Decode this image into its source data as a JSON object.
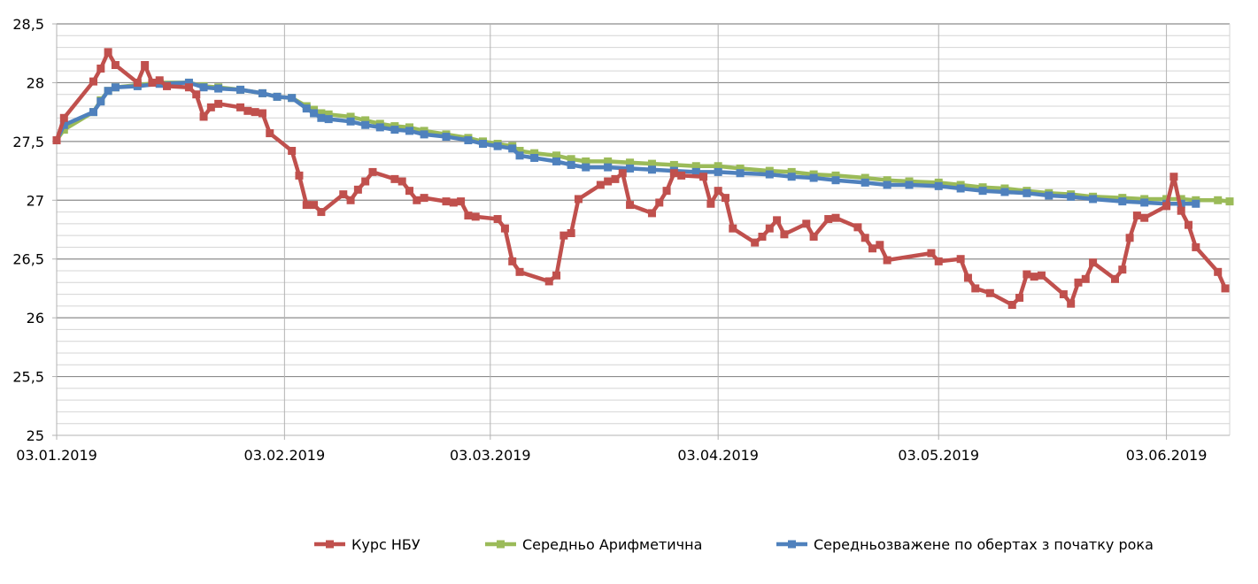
{
  "chart_data": {
    "type": "line",
    "title": "",
    "xlabel": "",
    "ylabel": "",
    "x_unit": "days since 03.01.2019",
    "xlim": [
      0,
      159.6
    ],
    "ylim": [
      25,
      28.5
    ],
    "y_major_step": 0.5,
    "y_minor_step": 0.1,
    "grid": true,
    "legend_position": "bottom",
    "y_ticks": [
      "25",
      "25,5",
      "26",
      "26,5",
      "27",
      "27,5",
      "28",
      "28,5"
    ],
    "x_ticks": [
      {
        "day": 0,
        "label": "03.01.2019"
      },
      {
        "day": 31,
        "label": "03.02.2019"
      },
      {
        "day": 59,
        "label": "03.03.2019"
      },
      {
        "day": 90,
        "label": "03.04.2019"
      },
      {
        "day": 120,
        "label": "03.05.2019"
      },
      {
        "day": 151,
        "label": "03.06.2019"
      }
    ],
    "series": [
      {
        "name": "Курс НБУ",
        "color": "#c0504d",
        "x": [
          0,
          1,
          5,
          6,
          7,
          8,
          11,
          12,
          13,
          14,
          15,
          18,
          19,
          20,
          21,
          22,
          25,
          26,
          27,
          28,
          29,
          32,
          33,
          34,
          35,
          36,
          39,
          40,
          41,
          42,
          43,
          46,
          47,
          48,
          49,
          50,
          53,
          54,
          55,
          56,
          57,
          60,
          61,
          62,
          63,
          67,
          68,
          69,
          70,
          71,
          74,
          75,
          76,
          77,
          78,
          81,
          82,
          83,
          84,
          85,
          88,
          89,
          90,
          91,
          92,
          95,
          96,
          97,
          98,
          99,
          102,
          103,
          105,
          106,
          109,
          110,
          111,
          112,
          113,
          119,
          120,
          123,
          124,
          125,
          127,
          130,
          131,
          132,
          133,
          134,
          137,
          138,
          139,
          140,
          141,
          144,
          145,
          146,
          147,
          148,
          151,
          152,
          153,
          154,
          155,
          158,
          159
        ],
        "y": [
          27.51,
          27.7,
          28.01,
          28.12,
          28.26,
          28.15,
          28.0,
          28.15,
          28.0,
          28.02,
          27.97,
          27.96,
          27.9,
          27.71,
          27.79,
          27.82,
          27.79,
          27.76,
          27.75,
          27.74,
          27.57,
          27.42,
          27.21,
          26.96,
          26.96,
          26.9,
          27.05,
          27.0,
          27.09,
          27.16,
          27.24,
          27.18,
          27.16,
          27.08,
          27.0,
          27.02,
          26.99,
          26.98,
          26.99,
          26.87,
          26.86,
          26.84,
          26.76,
          26.48,
          26.39,
          26.31,
          26.36,
          26.7,
          26.72,
          27.01,
          27.13,
          27.16,
          27.18,
          27.23,
          26.96,
          26.89,
          26.98,
          27.08,
          27.23,
          27.21,
          27.2,
          26.97,
          27.08,
          27.02,
          26.76,
          26.64,
          26.69,
          26.76,
          26.83,
          26.71,
          26.8,
          26.69,
          26.84,
          26.85,
          26.77,
          26.68,
          26.59,
          26.62,
          26.49,
          26.55,
          26.48,
          26.5,
          26.34,
          26.25,
          26.21,
          26.11,
          26.17,
          26.37,
          26.35,
          26.36,
          26.2,
          26.12,
          26.3,
          26.33,
          26.47,
          26.33,
          26.41,
          26.68,
          26.87,
          26.85,
          26.95,
          27.2,
          26.91,
          26.79,
          26.6,
          26.39,
          26.25
        ]
      },
      {
        "name": "Середньо Арифметична",
        "color": "#9bbb59",
        "x": [
          0,
          1,
          5,
          6,
          7,
          8,
          11,
          14,
          18,
          20,
          22,
          25,
          28,
          30,
          32,
          34,
          35,
          36,
          37,
          40,
          42,
          44,
          46,
          48,
          50,
          53,
          56,
          58,
          60,
          62,
          63,
          65,
          68,
          70,
          72,
          75,
          78,
          81,
          84,
          87,
          90,
          93,
          97,
          100,
          103,
          106,
          110,
          113,
          116,
          120,
          123,
          126,
          129,
          132,
          135,
          138,
          141,
          145,
          148,
          151,
          153,
          155,
          158,
          159.6
        ],
        "y": [
          27.51,
          27.6,
          27.75,
          27.85,
          27.93,
          27.96,
          27.98,
          28.0,
          28.0,
          27.97,
          27.96,
          27.94,
          27.91,
          27.88,
          27.87,
          27.8,
          27.77,
          27.74,
          27.73,
          27.71,
          27.68,
          27.65,
          27.63,
          27.62,
          27.59,
          27.56,
          27.53,
          27.5,
          27.48,
          27.46,
          27.42,
          27.4,
          27.38,
          27.35,
          27.33,
          27.33,
          27.32,
          27.31,
          27.3,
          27.29,
          27.29,
          27.27,
          27.25,
          27.24,
          27.22,
          27.21,
          27.19,
          27.17,
          27.16,
          27.15,
          27.13,
          27.11,
          27.1,
          27.08,
          27.06,
          27.05,
          27.03,
          27.02,
          27.01,
          27.01,
          27.01,
          27.0,
          27.0,
          26.99
        ]
      },
      {
        "name": "Середньозважене по обертах з початку рока",
        "color": "#4f81bd",
        "x": [
          0,
          1,
          5,
          6,
          7,
          8,
          11,
          14,
          18,
          20,
          22,
          25,
          28,
          30,
          32,
          34,
          35,
          36,
          37,
          40,
          42,
          44,
          46,
          48,
          50,
          53,
          56,
          58,
          60,
          62,
          63,
          65,
          68,
          70,
          72,
          75,
          78,
          81,
          84,
          87,
          90,
          93,
          97,
          100,
          103,
          106,
          110,
          113,
          116,
          120,
          123,
          126,
          129,
          132,
          135,
          138,
          141,
          145,
          148,
          151,
          153,
          155
        ],
        "y": [
          27.51,
          27.64,
          27.75,
          27.84,
          27.93,
          27.96,
          27.97,
          27.99,
          28.0,
          27.96,
          27.95,
          27.94,
          27.91,
          27.88,
          27.87,
          27.78,
          27.74,
          27.7,
          27.69,
          27.67,
          27.64,
          27.62,
          27.6,
          27.59,
          27.56,
          27.54,
          27.51,
          27.48,
          27.46,
          27.44,
          27.38,
          27.36,
          27.33,
          27.3,
          27.28,
          27.28,
          27.27,
          27.26,
          27.25,
          27.24,
          27.24,
          27.23,
          27.22,
          27.2,
          27.19,
          27.17,
          27.15,
          27.13,
          27.13,
          27.12,
          27.1,
          27.08,
          27.07,
          27.06,
          27.04,
          27.03,
          27.01,
          26.99,
          26.98,
          26.97,
          26.97,
          26.97
        ]
      }
    ]
  }
}
